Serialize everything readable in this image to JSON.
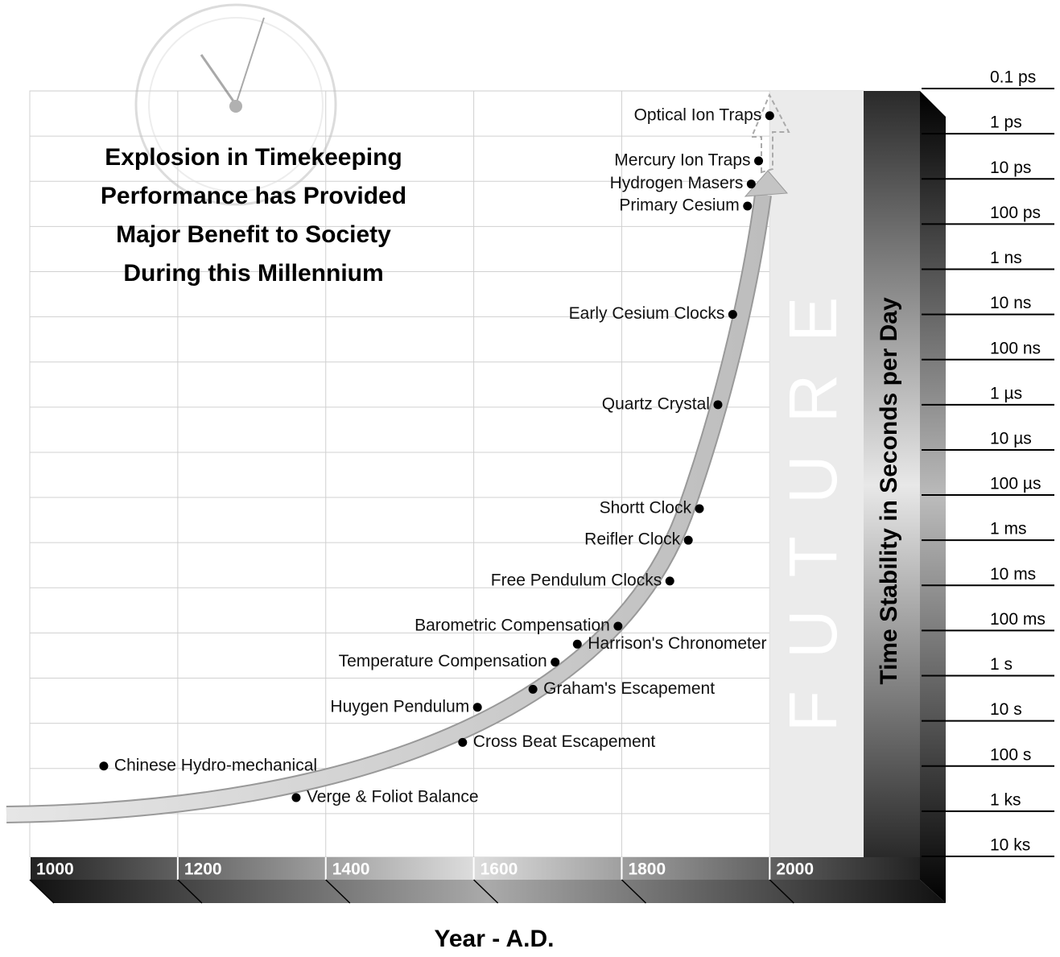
{
  "chart_data": {
    "type": "scatter",
    "title": [
      "Explosion in Timekeeping",
      "Performance has Provided",
      "Major Benefit to Society",
      "During this Millennium"
    ],
    "x_label": "Year - A.D.",
    "y_label": "Time Stability in Seconds per Day",
    "annotation": "FUTURE",
    "labels": [
      "Chinese Hydro-mechanical",
      "Verge & Foliot Balance",
      "Cross Beat Escapement",
      "Huygen Pendulum",
      "Graham's Escapement",
      "Temperature Compensation",
      "Harrison's Chronometer",
      "Barometric Compensation",
      "Free Pendulum Clocks",
      "Reifler Clock",
      "Shortt Clock",
      "Quartz Crystal",
      "Early Cesium Clocks",
      "Primary Cesium",
      "Hydrogen Masers",
      "Mercury Ion Traps",
      "Optical Ion Traps"
    ],
    "x": [
      1100,
      1360,
      1585,
      1605,
      1680,
      1710,
      1740,
      1795,
      1865,
      1890,
      1905,
      1930,
      1950,
      1970,
      1975,
      1985,
      2000
    ],
    "values": [
      100,
      500,
      30,
      5,
      2,
      0.5,
      0.2,
      0.08,
      0.008,
      0.001,
      0.0002,
      1e-06,
      1e-08,
      4e-11,
      1.3e-11,
      4e-12,
      4e-13
    ],
    "color": "#000000",
    "xlim": [
      1000,
      2128
    ],
    "xticks": [
      1000,
      1200,
      1400,
      1600,
      1800,
      2000
    ],
    "ylim": [
      10000,
      1e-13
    ],
    "log_y": true,
    "yticks": [
      {
        "value": 1e-13,
        "label": "0.1 ps"
      },
      {
        "value": 1e-12,
        "label": "1 ps"
      },
      {
        "value": 1e-11,
        "label": "10 ps"
      },
      {
        "value": 1e-10,
        "label": "100 ps"
      },
      {
        "value": 1e-09,
        "label": "1 ns"
      },
      {
        "value": 1e-08,
        "label": "10 ns"
      },
      {
        "value": 1e-07,
        "label": "100 ns"
      },
      {
        "value": 1e-06,
        "label": "1 µs"
      },
      {
        "value": 1e-05,
        "label": "10 µs"
      },
      {
        "value": 0.0001,
        "label": "100 µs"
      },
      {
        "value": 0.001,
        "label": "1 ms"
      },
      {
        "value": 0.01,
        "label": "10 ms"
      },
      {
        "value": 0.1,
        "label": "100 ms"
      },
      {
        "value": 1,
        "label": "1 s"
      },
      {
        "value": 10,
        "label": "10 s"
      },
      {
        "value": 100,
        "label": "100 s"
      },
      {
        "value": 1000,
        "label": "1 ks"
      },
      {
        "value": 10000,
        "label": "10 ks"
      }
    ],
    "grid": true
  }
}
